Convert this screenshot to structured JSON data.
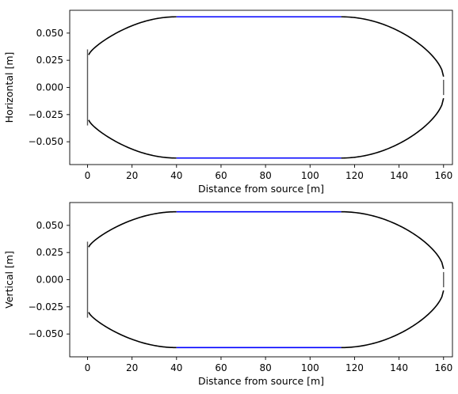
{
  "chart_data": [
    {
      "type": "line",
      "xlabel": "Distance from source [m]",
      "ylabel": "Horizontal [m]",
      "xlim": [
        -8,
        164
      ],
      "ylim": [
        -0.071,
        0.071
      ],
      "xticks": [
        0,
        20,
        40,
        60,
        80,
        100,
        120,
        140,
        160
      ],
      "yticks": [
        -0.05,
        -0.025,
        0.0,
        0.025,
        0.05
      ],
      "xtick_labels": [
        "0",
        "20",
        "40",
        "60",
        "80",
        "100",
        "120",
        "140",
        "160"
      ],
      "ytick_labels": [
        "−0.050",
        "−0.025",
        "0.000",
        "0.025",
        "0.050"
      ],
      "grid": false,
      "envelope": {
        "start_x": 0.5,
        "start_half_width": 0.03,
        "flat_start_x": 40,
        "flat_end_x": 114,
        "flat_half_width": 0.065,
        "end_x": 160,
        "end_half_width": 0.01
      },
      "segments_colors": {
        "tapered": "#000000",
        "flat": "#0000ff"
      },
      "markers": [
        {
          "x": 0,
          "y_from": -0.035,
          "y_to": 0.035,
          "color": "#555555"
        },
        {
          "x": 160,
          "y_from": -0.007,
          "y_to": 0.007,
          "color": "#555555"
        }
      ]
    },
    {
      "type": "line",
      "xlabel": "Distance from source [m]",
      "ylabel": "Vertical [m]",
      "xlim": [
        -8,
        164
      ],
      "ylim": [
        -0.071,
        0.071
      ],
      "xticks": [
        0,
        20,
        40,
        60,
        80,
        100,
        120,
        140,
        160
      ],
      "yticks": [
        -0.05,
        -0.025,
        0.0,
        0.025,
        0.05
      ],
      "xtick_labels": [
        "0",
        "20",
        "40",
        "60",
        "80",
        "100",
        "120",
        "140",
        "160"
      ],
      "ytick_labels": [
        "−0.050",
        "−0.025",
        "0.000",
        "0.025",
        "0.050"
      ],
      "grid": false,
      "envelope": {
        "start_x": 0.5,
        "start_half_width": 0.03,
        "flat_start_x": 40,
        "flat_end_x": 114,
        "flat_half_width": 0.0625,
        "end_x": 160,
        "end_half_width": 0.01
      },
      "segments_colors": {
        "tapered": "#000000",
        "flat": "#0000ff"
      },
      "markers": [
        {
          "x": 0,
          "y_from": -0.035,
          "y_to": 0.035,
          "color": "#555555"
        },
        {
          "x": 160,
          "y_from": -0.007,
          "y_to": 0.007,
          "color": "#555555"
        }
      ]
    }
  ]
}
